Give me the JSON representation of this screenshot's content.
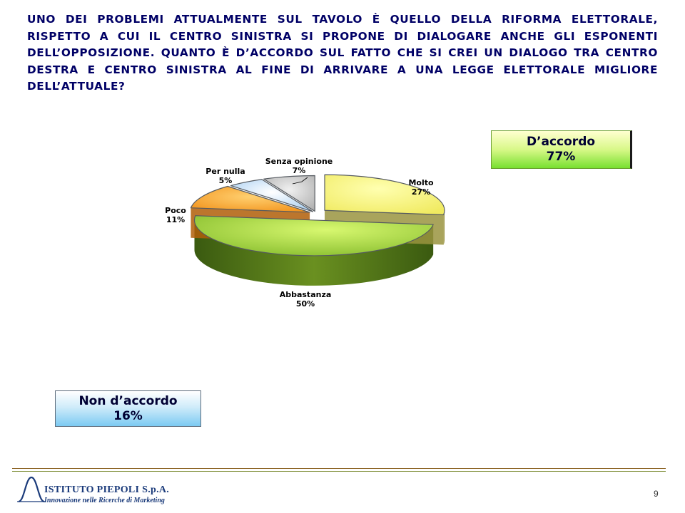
{
  "question": "UNO DEI PROBLEMI ATTUALMENTE SUL TAVOLO È QUELLO DELLA RIFORMA ELETTORALE, RISPETTO A CUI IL CENTRO SINISTRA SI PROPONE DI DIALOGARE ANCHE GLI ESPONENTI DELL’OPPOSIZIONE. QUANTO È D’ACCORDO SUL FATTO CHE SI CREI UN DIALOGO TRA CENTRO DESTRA E CENTRO SINISTRA AL FINE DI ARRIVARE A UNA LEGGE ELETTORALE MIGLIORE DELL’ATTUALE?",
  "chart_data": {
    "type": "pie",
    "style": "3d-exploded",
    "title": "",
    "categories": [
      "Molto",
      "Abbastanza",
      "Poco",
      "Per nulla",
      "Senza opinione"
    ],
    "values": [
      27,
      50,
      11,
      5,
      7
    ],
    "value_labels": [
      "27%",
      "50%",
      "11%",
      "5%",
      "7%"
    ],
    "colors": [
      "#f4f070",
      "#8ac030",
      "#f49020",
      "#a8d0f0",
      "#b8b8b8"
    ]
  },
  "summary": {
    "agree": {
      "label": "D’accordo",
      "value": "77%"
    },
    "disagree": {
      "label": "Non d’accordo",
      "value": "16%"
    }
  },
  "footer": {
    "company": "ISTITUTO PIEPOLI S.p.A.",
    "tagline": "Innovazione nelle Ricerche di Marketing",
    "page_number": "9"
  }
}
